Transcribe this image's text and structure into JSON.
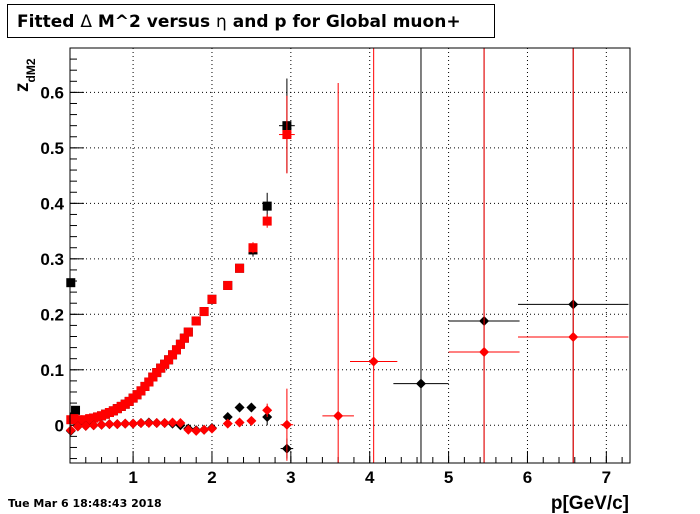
{
  "title": {
    "prefix": "Fitted ",
    "delta_symbol": "Δ",
    "middle": " M^2 versus ",
    "eta_symbol": "η",
    "suffix": " and p for Global muon+"
  },
  "timestamp": "Tue Mar  6 18:48:43 2018",
  "colors": {
    "series_a": "#000000",
    "series_b": "#ff0000",
    "grid": "#000000",
    "frame": "#000000"
  },
  "chart_data": {
    "type": "scatter",
    "xlabel": "p[GeV/c]",
    "ylabel_main": "z",
    "ylabel_sub": "dM2",
    "xlim": [
      0.2,
      7.3
    ],
    "ylim": [
      -0.068,
      0.68
    ],
    "xticks": [
      "1",
      "2",
      "3",
      "4",
      "5",
      "6",
      "7"
    ],
    "yticks": [
      "0",
      "0.1",
      "0.2",
      "0.3",
      "0.4",
      "0.5",
      "0.6"
    ],
    "grid": true,
    "legend": "none",
    "series": [
      {
        "marker": "square",
        "color": "#000000",
        "points": [
          {
            "x": 0.21,
            "y": 0.257
          },
          {
            "x": 0.25,
            "y": 0.015
          },
          {
            "x": 0.27,
            "y": 0.027
          },
          {
            "x": 0.3,
            "y": 0.006
          },
          {
            "x": 0.35,
            "y": 0.008
          },
          {
            "x": 0.4,
            "y": 0.009
          },
          {
            "x": 0.45,
            "y": 0.011
          },
          {
            "x": 0.5,
            "y": 0.013
          },
          {
            "x": 0.55,
            "y": 0.015
          },
          {
            "x": 0.6,
            "y": 0.017
          },
          {
            "x": 0.65,
            "y": 0.02
          },
          {
            "x": 0.7,
            "y": 0.023
          },
          {
            "x": 0.75,
            "y": 0.026
          },
          {
            "x": 0.8,
            "y": 0.03
          },
          {
            "x": 0.85,
            "y": 0.034
          },
          {
            "x": 0.9,
            "y": 0.038
          },
          {
            "x": 0.95,
            "y": 0.043
          },
          {
            "x": 1.0,
            "y": 0.049
          },
          {
            "x": 1.05,
            "y": 0.055
          },
          {
            "x": 1.1,
            "y": 0.062
          },
          {
            "x": 1.15,
            "y": 0.07
          },
          {
            "x": 1.2,
            "y": 0.078
          },
          {
            "x": 1.25,
            "y": 0.087
          },
          {
            "x": 1.3,
            "y": 0.095
          },
          {
            "x": 1.35,
            "y": 0.103
          },
          {
            "x": 1.4,
            "y": 0.11
          },
          {
            "x": 1.45,
            "y": 0.118
          },
          {
            "x": 1.5,
            "y": 0.127
          },
          {
            "x": 1.55,
            "y": 0.136
          },
          {
            "x": 1.6,
            "y": 0.146
          },
          {
            "x": 1.65,
            "y": 0.157
          },
          {
            "x": 1.7,
            "y": 0.168
          },
          {
            "x": 1.8,
            "y": 0.188
          },
          {
            "x": 1.9,
            "y": 0.205
          },
          {
            "x": 2.0,
            "y": 0.227
          },
          {
            "x": 2.2,
            "y": 0.252
          },
          {
            "x": 2.35,
            "y": 0.283
          },
          {
            "x": 2.52,
            "y": 0.316,
            "err": 0.012
          },
          {
            "x": 2.7,
            "y": 0.395,
            "err": 0.024
          },
          {
            "x": 2.95,
            "y": 0.54,
            "err": 0.085,
            "xerr": 0.1
          }
        ]
      },
      {
        "marker": "square",
        "color": "#ff0000",
        "points": [
          {
            "x": 0.21,
            "y": 0.01
          },
          {
            "x": 0.25,
            "y": 0.012
          },
          {
            "x": 0.3,
            "y": 0.01
          },
          {
            "x": 0.35,
            "y": 0.009
          },
          {
            "x": 0.4,
            "y": 0.01
          },
          {
            "x": 0.45,
            "y": 0.012
          },
          {
            "x": 0.5,
            "y": 0.013
          },
          {
            "x": 0.55,
            "y": 0.015
          },
          {
            "x": 0.6,
            "y": 0.017
          },
          {
            "x": 0.65,
            "y": 0.02
          },
          {
            "x": 0.7,
            "y": 0.023
          },
          {
            "x": 0.75,
            "y": 0.026
          },
          {
            "x": 0.8,
            "y": 0.03
          },
          {
            "x": 0.85,
            "y": 0.034
          },
          {
            "x": 0.9,
            "y": 0.038
          },
          {
            "x": 0.95,
            "y": 0.043
          },
          {
            "x": 1.0,
            "y": 0.049
          },
          {
            "x": 1.05,
            "y": 0.055
          },
          {
            "x": 1.1,
            "y": 0.062
          },
          {
            "x": 1.15,
            "y": 0.07
          },
          {
            "x": 1.2,
            "y": 0.078
          },
          {
            "x": 1.25,
            "y": 0.087
          },
          {
            "x": 1.3,
            "y": 0.095
          },
          {
            "x": 1.35,
            "y": 0.103
          },
          {
            "x": 1.4,
            "y": 0.11
          },
          {
            "x": 1.45,
            "y": 0.118
          },
          {
            "x": 1.5,
            "y": 0.127
          },
          {
            "x": 1.55,
            "y": 0.136
          },
          {
            "x": 1.6,
            "y": 0.146
          },
          {
            "x": 1.65,
            "y": 0.157
          },
          {
            "x": 1.7,
            "y": 0.168
          },
          {
            "x": 1.8,
            "y": 0.188
          },
          {
            "x": 1.9,
            "y": 0.205
          },
          {
            "x": 2.0,
            "y": 0.227
          },
          {
            "x": 2.2,
            "y": 0.252
          },
          {
            "x": 2.35,
            "y": 0.283
          },
          {
            "x": 2.52,
            "y": 0.32,
            "err": 0.01
          },
          {
            "x": 2.7,
            "y": 0.368,
            "err": 0.012
          },
          {
            "x": 2.95,
            "y": 0.524,
            "err": 0.07,
            "xerr": 0.1
          }
        ]
      },
      {
        "marker": "diamond",
        "color": "#000000",
        "points": [
          {
            "x": 0.21,
            "y": -0.01
          },
          {
            "x": 0.3,
            "y": -0.002
          },
          {
            "x": 0.4,
            "y": -0.001
          },
          {
            "x": 0.5,
            "y": 0.0
          },
          {
            "x": 0.6,
            "y": 0.001
          },
          {
            "x": 0.7,
            "y": 0.002
          },
          {
            "x": 0.8,
            "y": 0.002
          },
          {
            "x": 0.9,
            "y": 0.003
          },
          {
            "x": 1.0,
            "y": 0.003
          },
          {
            "x": 1.1,
            "y": 0.004
          },
          {
            "x": 1.2,
            "y": 0.005
          },
          {
            "x": 1.3,
            "y": 0.004
          },
          {
            "x": 1.4,
            "y": 0.004
          },
          {
            "x": 1.5,
            "y": 0.003
          },
          {
            "x": 1.6,
            "y": 0.0
          },
          {
            "x": 1.7,
            "y": -0.006
          },
          {
            "x": 1.8,
            "y": -0.009
          },
          {
            "x": 1.9,
            "y": -0.008
          },
          {
            "x": 2.0,
            "y": -0.005
          },
          {
            "x": 2.2,
            "y": 0.015
          },
          {
            "x": 2.35,
            "y": 0.032
          },
          {
            "x": 2.5,
            "y": 0.032
          },
          {
            "x": 2.7,
            "y": 0.015,
            "err": 0.015
          },
          {
            "x": 2.95,
            "y": -0.042,
            "err": 0.018,
            "xerr": 0.08
          },
          {
            "x": 4.65,
            "y": 0.075,
            "err": 0.8,
            "xerr": 0.35
          },
          {
            "x": 5.45,
            "y": 0.188,
            "err": 0.8,
            "xerr": 0.45
          },
          {
            "x": 6.58,
            "y": 0.218,
            "err": 0.8,
            "xerr": 0.7
          }
        ]
      },
      {
        "marker": "diamond",
        "color": "#ff0000",
        "points": [
          {
            "x": 0.21,
            "y": -0.009
          },
          {
            "x": 0.3,
            "y": -0.002
          },
          {
            "x": 0.4,
            "y": -0.001
          },
          {
            "x": 0.5,
            "y": 0.0
          },
          {
            "x": 0.6,
            "y": 0.001
          },
          {
            "x": 0.7,
            "y": 0.002
          },
          {
            "x": 0.8,
            "y": 0.002
          },
          {
            "x": 0.9,
            "y": 0.003
          },
          {
            "x": 1.0,
            "y": 0.003
          },
          {
            "x": 1.1,
            "y": 0.004
          },
          {
            "x": 1.2,
            "y": 0.004
          },
          {
            "x": 1.3,
            "y": 0.004
          },
          {
            "x": 1.4,
            "y": 0.004
          },
          {
            "x": 1.5,
            "y": 0.005
          },
          {
            "x": 1.6,
            "y": 0.004
          },
          {
            "x": 1.7,
            "y": -0.008
          },
          {
            "x": 1.8,
            "y": -0.01
          },
          {
            "x": 1.9,
            "y": -0.008
          },
          {
            "x": 2.0,
            "y": -0.006
          },
          {
            "x": 2.2,
            "y": 0.003
          },
          {
            "x": 2.35,
            "y": 0.005
          },
          {
            "x": 2.5,
            "y": 0.008
          },
          {
            "x": 2.7,
            "y": 0.027,
            "err": 0.012
          },
          {
            "x": 2.95,
            "y": 0.001,
            "err": 0.065,
            "xerr": 0.08
          },
          {
            "x": 3.6,
            "y": 0.017,
            "err": 0.6,
            "xerr": 0.2
          },
          {
            "x": 4.05,
            "y": 0.115,
            "err": 0.8,
            "xerr": 0.3
          },
          {
            "x": 5.45,
            "y": 0.132,
            "err": 0.8,
            "xerr": 0.45
          },
          {
            "x": 6.58,
            "y": 0.159,
            "err": 0.8,
            "xerr": 0.7
          }
        ]
      }
    ]
  }
}
